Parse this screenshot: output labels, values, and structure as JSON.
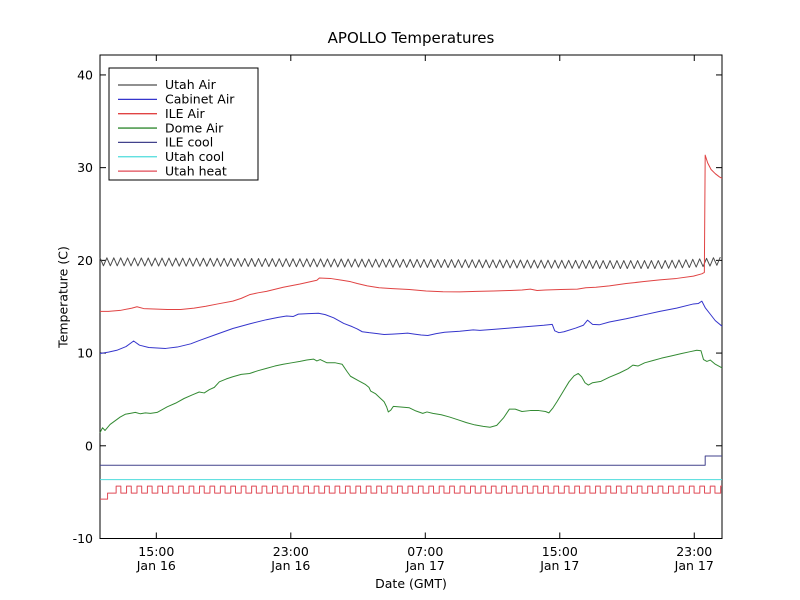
{
  "figure": {
    "background_color": "#ffffff",
    "frame_color": "#000000"
  },
  "chart_data": {
    "type": "line",
    "title": "APOLLO Temperatures",
    "xlabel": "Date (GMT)",
    "ylabel": "Temperature (C)",
    "grid": false,
    "legend_position": "upper left",
    "x_unit": "hours_from_plot_start",
    "x_range": [
      0,
      37
    ],
    "y_range": [
      -10,
      42.15
    ],
    "y_ticks": [
      -10,
      0,
      10,
      20,
      30,
      40
    ],
    "x_ticks": [
      {
        "t": 3.35,
        "time": "15:00",
        "date": "Jan 16"
      },
      {
        "t": 11.35,
        "time": "23:00",
        "date": "Jan 16"
      },
      {
        "t": 19.35,
        "time": "07:00",
        "date": "Jan 17"
      },
      {
        "t": 27.35,
        "time": "15:00",
        "date": "Jan 17"
      },
      {
        "t": 35.35,
        "time": "23:00",
        "date": "Jan 17"
      }
    ],
    "series": [
      {
        "name": "Utah Air",
        "color": "#4d4d4d",
        "pattern": "zigzag",
        "mean_points": [
          [
            0,
            19.85
          ],
          [
            8,
            19.78
          ],
          [
            16,
            19.7
          ],
          [
            24,
            19.62
          ],
          [
            30,
            19.55
          ],
          [
            33.5,
            19.55
          ],
          [
            35,
            19.65
          ],
          [
            36.2,
            19.8
          ],
          [
            37,
            19.95
          ]
        ],
        "amplitude": 0.43,
        "period_hours": 0.41
      },
      {
        "name": "Cabinet Air",
        "color": "#3535cc",
        "points": [
          [
            0,
            9.95
          ],
          [
            0.5,
            10.1
          ],
          [
            1.0,
            10.3
          ],
          [
            1.55,
            10.7
          ],
          [
            2.0,
            11.3
          ],
          [
            2.35,
            10.85
          ],
          [
            2.9,
            10.6
          ],
          [
            3.9,
            10.5
          ],
          [
            4.6,
            10.65
          ],
          [
            5.4,
            11.0
          ],
          [
            5.9,
            11.35
          ],
          [
            6.9,
            12.0
          ],
          [
            7.9,
            12.65
          ],
          [
            8.9,
            13.15
          ],
          [
            9.9,
            13.6
          ],
          [
            10.6,
            13.85
          ],
          [
            11.1,
            14.0
          ],
          [
            11.5,
            13.95
          ],
          [
            11.8,
            14.2
          ],
          [
            12.4,
            14.25
          ],
          [
            13.0,
            14.3
          ],
          [
            13.4,
            14.15
          ],
          [
            13.9,
            13.8
          ],
          [
            14.5,
            13.2
          ],
          [
            15.0,
            12.85
          ],
          [
            15.3,
            12.6
          ],
          [
            15.6,
            12.3
          ],
          [
            16.0,
            12.2
          ],
          [
            16.5,
            12.1
          ],
          [
            16.9,
            12.0
          ],
          [
            17.4,
            12.05
          ],
          [
            17.9,
            12.1
          ],
          [
            18.3,
            12.15
          ],
          [
            18.7,
            12.05
          ],
          [
            19.1,
            11.95
          ],
          [
            19.5,
            11.9
          ],
          [
            20.0,
            12.1
          ],
          [
            20.5,
            12.25
          ],
          [
            21.4,
            12.35
          ],
          [
            22.2,
            12.5
          ],
          [
            22.6,
            12.45
          ],
          [
            23.4,
            12.55
          ],
          [
            24.4,
            12.7
          ],
          [
            25.4,
            12.85
          ],
          [
            26.4,
            13.0
          ],
          [
            26.9,
            13.1
          ],
          [
            27.05,
            12.4
          ],
          [
            27.3,
            12.2
          ],
          [
            27.6,
            12.3
          ],
          [
            28.3,
            12.7
          ],
          [
            28.75,
            13.0
          ],
          [
            29.0,
            13.55
          ],
          [
            29.3,
            13.1
          ],
          [
            29.7,
            13.05
          ],
          [
            30.3,
            13.35
          ],
          [
            31.3,
            13.7
          ],
          [
            32.3,
            14.1
          ],
          [
            33.3,
            14.5
          ],
          [
            34.3,
            14.85
          ],
          [
            35.3,
            15.3
          ],
          [
            35.6,
            15.35
          ],
          [
            35.8,
            15.6
          ],
          [
            36.0,
            14.9
          ],
          [
            36.3,
            14.2
          ],
          [
            36.6,
            13.5
          ],
          [
            37,
            12.9
          ]
        ]
      },
      {
        "name": "ILE Air",
        "color": "#e04343",
        "points": [
          [
            0,
            14.5
          ],
          [
            0.5,
            14.5
          ],
          [
            1.2,
            14.6
          ],
          [
            1.9,
            14.85
          ],
          [
            2.2,
            15.0
          ],
          [
            2.6,
            14.8
          ],
          [
            3.2,
            14.75
          ],
          [
            4.0,
            14.7
          ],
          [
            4.8,
            14.7
          ],
          [
            5.6,
            14.85
          ],
          [
            6.3,
            15.05
          ],
          [
            7.0,
            15.3
          ],
          [
            7.9,
            15.6
          ],
          [
            8.4,
            15.9
          ],
          [
            8.9,
            16.3
          ],
          [
            9.4,
            16.5
          ],
          [
            9.9,
            16.65
          ],
          [
            10.9,
            17.1
          ],
          [
            11.9,
            17.45
          ],
          [
            12.9,
            17.85
          ],
          [
            13.05,
            18.1
          ],
          [
            13.7,
            18.05
          ],
          [
            14.4,
            17.85
          ],
          [
            14.9,
            17.7
          ],
          [
            15.3,
            17.5
          ],
          [
            15.9,
            17.25
          ],
          [
            16.6,
            17.05
          ],
          [
            17.4,
            16.95
          ],
          [
            18.4,
            16.85
          ],
          [
            19.4,
            16.7
          ],
          [
            20.4,
            16.62
          ],
          [
            21.4,
            16.6
          ],
          [
            22.4,
            16.65
          ],
          [
            23.4,
            16.7
          ],
          [
            24.4,
            16.75
          ],
          [
            25.1,
            16.8
          ],
          [
            25.6,
            16.9
          ],
          [
            26.0,
            16.75
          ],
          [
            26.5,
            16.8
          ],
          [
            27.4,
            16.85
          ],
          [
            28.4,
            16.9
          ],
          [
            28.9,
            17.05
          ],
          [
            29.5,
            17.1
          ],
          [
            30.3,
            17.25
          ],
          [
            31.3,
            17.5
          ],
          [
            32.3,
            17.7
          ],
          [
            33.3,
            17.9
          ],
          [
            34.3,
            18.05
          ],
          [
            35.3,
            18.3
          ],
          [
            35.8,
            18.55
          ],
          [
            35.95,
            18.7
          ],
          [
            36.0,
            31.35
          ],
          [
            36.15,
            30.5
          ],
          [
            36.35,
            29.8
          ],
          [
            36.6,
            29.35
          ],
          [
            36.85,
            29.0
          ],
          [
            37,
            28.85
          ]
        ]
      },
      {
        "name": "Dome Air",
        "color": "#338a33",
        "points": [
          [
            0,
            1.4
          ],
          [
            0.15,
            1.95
          ],
          [
            0.3,
            1.65
          ],
          [
            0.6,
            2.3
          ],
          [
            1.2,
            3.1
          ],
          [
            1.5,
            3.4
          ],
          [
            1.8,
            3.5
          ],
          [
            2.1,
            3.6
          ],
          [
            2.4,
            3.45
          ],
          [
            2.7,
            3.55
          ],
          [
            3.0,
            3.5
          ],
          [
            3.4,
            3.6
          ],
          [
            4.0,
            4.2
          ],
          [
            4.5,
            4.6
          ],
          [
            5.0,
            5.1
          ],
          [
            5.5,
            5.5
          ],
          [
            5.9,
            5.8
          ],
          [
            6.2,
            5.7
          ],
          [
            6.5,
            6.05
          ],
          [
            6.8,
            6.3
          ],
          [
            7.1,
            6.9
          ],
          [
            7.5,
            7.2
          ],
          [
            7.9,
            7.45
          ],
          [
            8.4,
            7.7
          ],
          [
            8.9,
            7.8
          ],
          [
            9.4,
            8.1
          ],
          [
            9.9,
            8.35
          ],
          [
            10.4,
            8.6
          ],
          [
            10.9,
            8.8
          ],
          [
            11.4,
            8.95
          ],
          [
            11.9,
            9.1
          ],
          [
            12.3,
            9.25
          ],
          [
            12.7,
            9.35
          ],
          [
            12.9,
            9.15
          ],
          [
            13.1,
            9.3
          ],
          [
            13.5,
            8.95
          ],
          [
            14.0,
            8.95
          ],
          [
            14.4,
            8.8
          ],
          [
            14.7,
            8.0
          ],
          [
            14.9,
            7.5
          ],
          [
            15.4,
            7.0
          ],
          [
            15.8,
            6.6
          ],
          [
            16.0,
            6.3
          ],
          [
            16.1,
            5.9
          ],
          [
            16.4,
            5.6
          ],
          [
            16.9,
            4.75
          ],
          [
            17.05,
            4.2
          ],
          [
            17.15,
            3.65
          ],
          [
            17.3,
            3.85
          ],
          [
            17.45,
            4.25
          ],
          [
            17.8,
            4.2
          ],
          [
            18.4,
            4.1
          ],
          [
            18.8,
            3.75
          ],
          [
            19.2,
            3.5
          ],
          [
            19.45,
            3.65
          ],
          [
            19.8,
            3.5
          ],
          [
            20.3,
            3.35
          ],
          [
            20.8,
            3.1
          ],
          [
            21.3,
            2.8
          ],
          [
            21.8,
            2.5
          ],
          [
            22.3,
            2.25
          ],
          [
            22.8,
            2.1
          ],
          [
            23.2,
            2.0
          ],
          [
            23.6,
            2.2
          ],
          [
            24.0,
            3.0
          ],
          [
            24.35,
            3.95
          ],
          [
            24.7,
            3.95
          ],
          [
            25.1,
            3.7
          ],
          [
            25.6,
            3.8
          ],
          [
            26.1,
            3.8
          ],
          [
            26.5,
            3.7
          ],
          [
            26.7,
            3.55
          ],
          [
            26.95,
            4.1
          ],
          [
            27.2,
            4.8
          ],
          [
            27.6,
            6.0
          ],
          [
            27.9,
            6.9
          ],
          [
            28.2,
            7.55
          ],
          [
            28.45,
            7.8
          ],
          [
            28.65,
            7.45
          ],
          [
            28.85,
            6.8
          ],
          [
            29.05,
            6.55
          ],
          [
            29.3,
            6.8
          ],
          [
            29.8,
            6.95
          ],
          [
            30.3,
            7.4
          ],
          [
            30.9,
            7.85
          ],
          [
            31.4,
            8.3
          ],
          [
            31.7,
            8.7
          ],
          [
            32.0,
            8.6
          ],
          [
            32.4,
            8.95
          ],
          [
            32.9,
            9.2
          ],
          [
            33.4,
            9.45
          ],
          [
            34.0,
            9.7
          ],
          [
            34.6,
            9.95
          ],
          [
            35.1,
            10.15
          ],
          [
            35.5,
            10.3
          ],
          [
            35.75,
            10.25
          ],
          [
            35.9,
            9.3
          ],
          [
            36.1,
            9.1
          ],
          [
            36.3,
            9.25
          ],
          [
            36.6,
            8.8
          ],
          [
            36.9,
            8.5
          ],
          [
            37,
            8.4
          ]
        ]
      },
      {
        "name": "ILE cool",
        "color": "#42428c",
        "points": [
          [
            0,
            -2.1
          ],
          [
            36.0,
            -2.1
          ],
          [
            36.0,
            -1.1
          ],
          [
            37,
            -1.1
          ]
        ]
      },
      {
        "name": "Utah cool",
        "color": "#4ddcdc",
        "points": [
          [
            0,
            -3.65
          ],
          [
            37,
            -3.65
          ]
        ]
      },
      {
        "name": "Utah heat",
        "color": "#e04a56",
        "pattern": "square",
        "low": -5.1,
        "high": -4.35,
        "period_hours": 0.62,
        "high_hours": 0.28,
        "start_t": 0.62,
        "prelude": [
          [
            0,
            -5.75
          ],
          [
            0.45,
            -5.75
          ],
          [
            0.45,
            -5.1
          ],
          [
            0.62,
            -5.1
          ]
        ]
      }
    ]
  }
}
